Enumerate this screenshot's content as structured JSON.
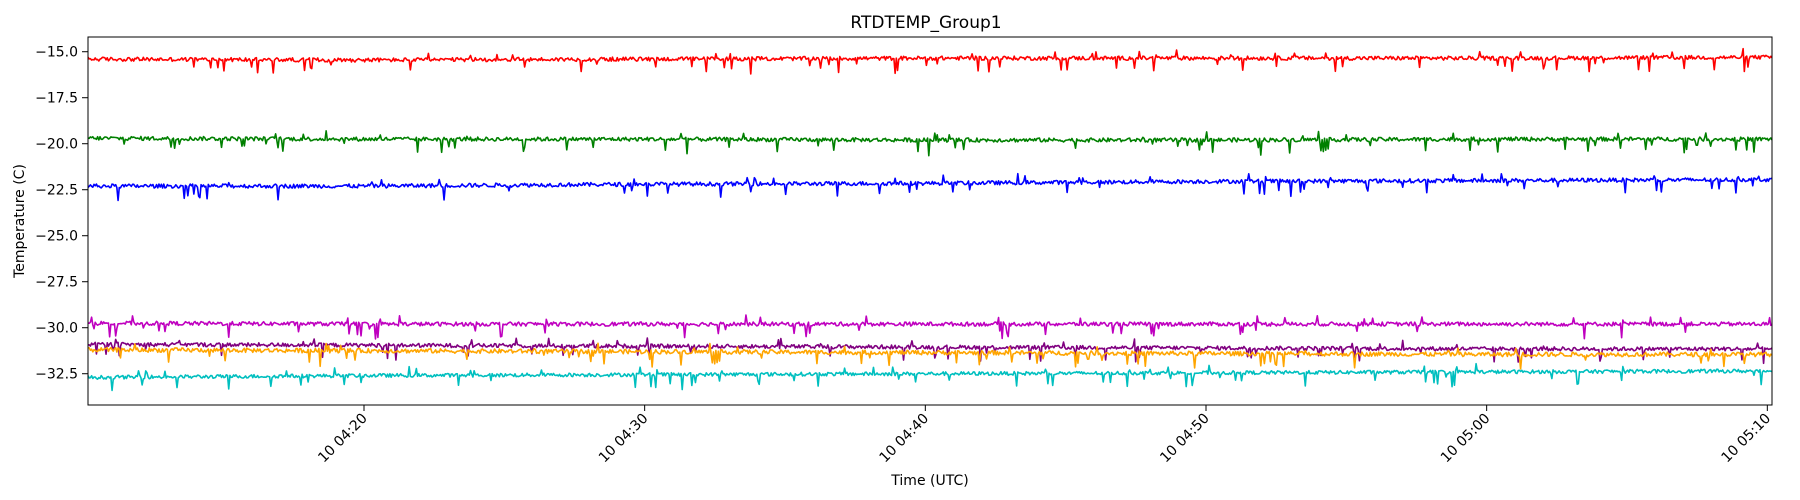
{
  "chart_data": {
    "type": "line",
    "title": "RTDTEMP_Group1",
    "xlabel": "Time (UTC)",
    "ylabel": "Temperature (C)",
    "x_range": [
      "10 04:10:10",
      "10 05:10:10"
    ],
    "x_ticks": [
      "10 04:20",
      "10 04:30",
      "10 04:40",
      "10 04:50",
      "10 05:00",
      "10 05:10"
    ],
    "ylim": [
      -34.2,
      -14.2
    ],
    "y_ticks": [
      "−15.0",
      "−17.5",
      "−20.0",
      "−22.5",
      "−25.0",
      "−27.5",
      "−30.0",
      "−32.5"
    ],
    "grid": false,
    "legend": "none",
    "series": [
      {
        "color": "#ff0000",
        "x": [
          "10 04:10",
          "10 04:20",
          "10 04:30",
          "10 04:40",
          "10 04:50",
          "10 05:00",
          "10 05:10"
        ],
        "values": [
          -15.4,
          -15.45,
          -15.4,
          -15.35,
          -15.35,
          -15.35,
          -15.3
        ]
      },
      {
        "color": "#008000",
        "x": [
          "10 04:10",
          "10 04:20",
          "10 04:30",
          "10 04:40",
          "10 04:50",
          "10 05:00",
          "10 05:10"
        ],
        "values": [
          -19.7,
          -19.75,
          -19.75,
          -19.8,
          -19.8,
          -19.75,
          -19.75
        ]
      },
      {
        "color": "#0000ff",
        "x": [
          "10 04:10",
          "10 04:20",
          "10 04:30",
          "10 04:40",
          "10 04:50",
          "10 05:00",
          "10 05:10"
        ],
        "values": [
          -22.3,
          -22.3,
          -22.2,
          -22.15,
          -22.05,
          -22.0,
          -21.95
        ]
      },
      {
        "color": "#bf00bf",
        "x": [
          "10 04:10",
          "10 04:20",
          "10 04:30",
          "10 04:40",
          "10 04:50",
          "10 05:00",
          "10 05:10"
        ],
        "values": [
          -29.75,
          -29.8,
          -29.8,
          -29.8,
          -29.8,
          -29.8,
          -29.8
        ]
      },
      {
        "color": "#800080",
        "x": [
          "10 04:10",
          "10 04:20",
          "10 04:30",
          "10 04:40",
          "10 04:50",
          "10 05:00",
          "10 05:10"
        ],
        "values": [
          -30.9,
          -30.95,
          -31.0,
          -31.05,
          -31.1,
          -31.15,
          -31.15
        ]
      },
      {
        "color": "#ffa500",
        "x": [
          "10 04:10",
          "10 04:20",
          "10 04:30",
          "10 04:40",
          "10 04:50",
          "10 05:00",
          "10 05:10"
        ],
        "values": [
          -31.2,
          -31.25,
          -31.3,
          -31.35,
          -31.4,
          -31.45,
          -31.45
        ]
      },
      {
        "color": "#00bfbf",
        "x": [
          "10 04:10",
          "10 04:20",
          "10 04:30",
          "10 04:40",
          "10 04:50",
          "10 05:00",
          "10 05:10"
        ],
        "values": [
          -32.7,
          -32.6,
          -32.55,
          -32.5,
          -32.45,
          -32.4,
          -32.35
        ]
      }
    ]
  }
}
